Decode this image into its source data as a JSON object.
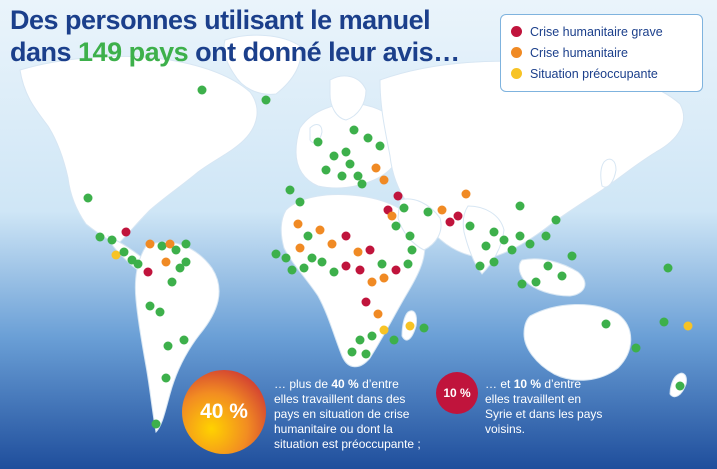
{
  "title": {
    "line1": "Des personnes utilisant le manuel",
    "line2_pre": "dans ",
    "line2_highlight": "149 pays",
    "line2_post": " ont donné leur avis…"
  },
  "legend": [
    {
      "label": "Crise humanitaire grave",
      "color": "#c0143c"
    },
    {
      "label": "Crise humanitaire",
      "color": "#f08a24"
    },
    {
      "label": "Situation préoccupante",
      "color": "#f7c325"
    }
  ],
  "colors": {
    "ocean_top": "#eaf4fb",
    "ocean_bottom": "#1f4e9c",
    "land": "#ffffff",
    "title": "#1b3f8b",
    "highlight": "#3db04b",
    "dot_default": "#3db04b"
  },
  "stat_1": {
    "badge": "40 %",
    "pre": "… plus de ",
    "bold": "40 %",
    "post": " d’entre elles travaillent dans des pays en situation de crise humanitaire ou dont la situation est préoccupante ;"
  },
  "stat_2": {
    "badge": "10 %",
    "pre": "… et ",
    "bold": "10 %",
    "post": " d’entre elles travaillent en Syrie et dans les pays voisins."
  }
}
